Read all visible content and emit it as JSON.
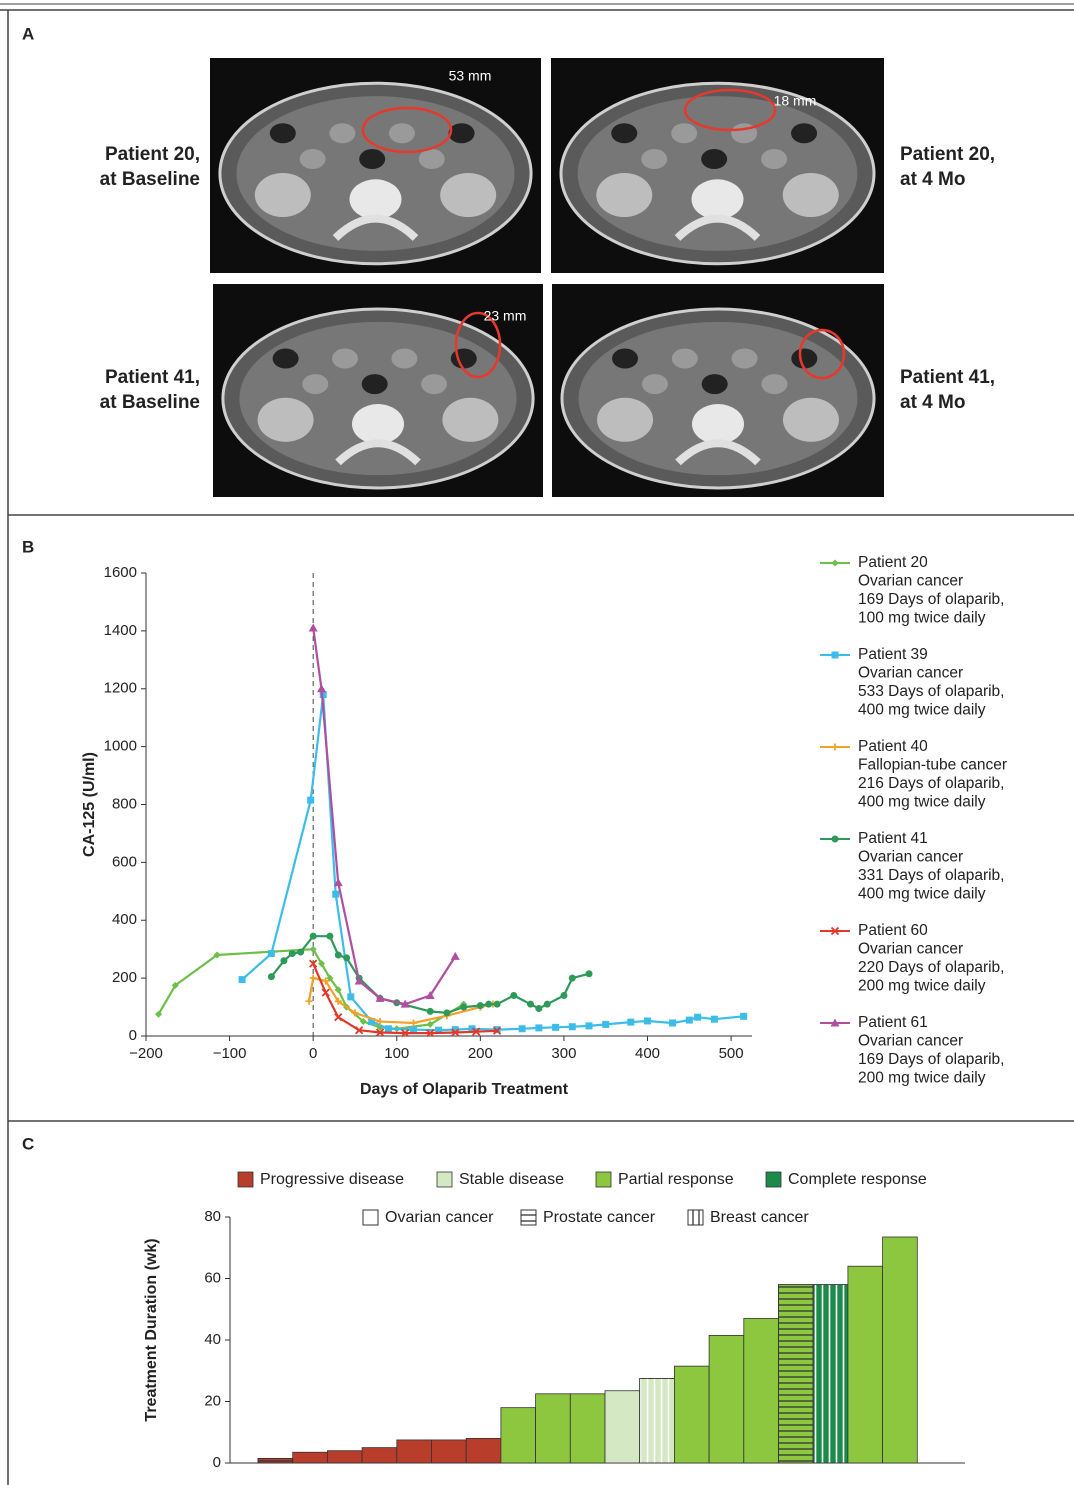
{
  "panel_a": {
    "letter": "A",
    "rows": [
      {
        "before": [
          "Patient 20,",
          "at Baseline"
        ],
        "after": [
          "Patient 20,",
          "at 4 Mo"
        ],
        "measure_before": "53 mm",
        "measure_after": "18 mm"
      },
      {
        "before": [
          "Patient 41,",
          "at Baseline"
        ],
        "after": [
          "Patient 41,",
          "at 4 Mo"
        ],
        "measure_before": "23 mm"
      }
    ]
  },
  "chart_data": [
    {
      "type": "line",
      "panel_label": "B",
      "ylabel": "CA-125 (U/ml)",
      "xlabel": "Days of Olaparib Treatment",
      "xlim": [
        -200,
        525
      ],
      "ylim": [
        0,
        1600
      ],
      "xticks": [
        {
          "value": -200,
          "label": "−200"
        },
        {
          "value": -100,
          "label": "−100"
        },
        0,
        100,
        200,
        300,
        400,
        500
      ],
      "yticks": [
        0,
        200,
        400,
        600,
        800,
        1000,
        1200,
        1400,
        1600
      ],
      "reference_x": 0,
      "series": [
        {
          "name": "Patient 20",
          "details": [
            "Ovarian cancer",
            "169 Days of olaparib,",
            "100 mg twice daily"
          ],
          "color": "#6cbf47",
          "marker": "diamond",
          "x": [
            -185,
            -165,
            -115,
            0,
            10,
            20,
            30,
            40,
            60,
            80,
            100,
            140,
            180
          ],
          "values": [
            75,
            175,
            280,
            300,
            250,
            200,
            160,
            100,
            50,
            30,
            25,
            40,
            110
          ]
        },
        {
          "name": "Patient 39",
          "details": [
            "Ovarian cancer",
            "533 Days of olaparib,",
            "400 mg twice daily"
          ],
          "color": "#3cbde9",
          "marker": "square",
          "x": [
            -85,
            -50,
            -3,
            12,
            27,
            45,
            70,
            90,
            120,
            150,
            170,
            190,
            220,
            250,
            270,
            290,
            310,
            330,
            350,
            380,
            400,
            430,
            450,
            460,
            480,
            515
          ],
          "values": [
            195,
            285,
            815,
            1180,
            490,
            135,
            50,
            25,
            22,
            20,
            22,
            25,
            22,
            25,
            28,
            30,
            32,
            35,
            40,
            48,
            52,
            45,
            55,
            65,
            58,
            68
          ]
        },
        {
          "name": "Patient 40",
          "details": [
            "Fallopian-tube cancer",
            "216 Days of olaparib,",
            "400 mg twice daily"
          ],
          "color": "#f2a22a",
          "marker": "plus",
          "x": [
            -5,
            0,
            15,
            30,
            50,
            80,
            120,
            160,
            200,
            215
          ],
          "values": [
            120,
            200,
            190,
            120,
            80,
            50,
            45,
            70,
            100,
            110
          ]
        },
        {
          "name": "Patient 41",
          "details": [
            "Ovarian cancer",
            "331 Days of olaparib,",
            "400 mg twice daily"
          ],
          "color": "#2e9a5a",
          "marker": "circle",
          "x": [
            -50,
            -35,
            -25,
            -15,
            0,
            20,
            30,
            40,
            55,
            80,
            100,
            140,
            160,
            180,
            200,
            210,
            220,
            240,
            260,
            270,
            280,
            300,
            310,
            330
          ],
          "values": [
            205,
            260,
            285,
            290,
            345,
            345,
            280,
            270,
            200,
            130,
            115,
            85,
            80,
            100,
            105,
            110,
            110,
            140,
            110,
            95,
            110,
            140,
            200,
            215
          ]
        },
        {
          "name": "Patient 60",
          "details": [
            "Ovarian cancer",
            "220 Days of olaparib,",
            "200 mg twice daily"
          ],
          "color": "#e0382a",
          "marker": "x",
          "x": [
            0,
            15,
            30,
            55,
            80,
            110,
            140,
            170,
            195,
            220
          ],
          "values": [
            250,
            150,
            65,
            20,
            12,
            10,
            10,
            12,
            15,
            18
          ]
        },
        {
          "name": "Patient 61",
          "details": [
            "Ovarian cancer",
            "169 Days of olaparib,",
            "200 mg twice daily"
          ],
          "color": "#b04ea0",
          "marker": "triangle",
          "x": [
            0,
            10,
            30,
            55,
            80,
            110,
            140,
            170
          ],
          "values": [
            1410,
            1200,
            530,
            190,
            130,
            110,
            140,
            275
          ]
        }
      ]
    },
    {
      "type": "bar",
      "panel_label": "C",
      "ylabel": "Treatment Duration (wk)",
      "ylim": [
        0,
        80
      ],
      "yticks": [
        0,
        20,
        40,
        60,
        80
      ],
      "response_legend": [
        {
          "name": "Progressive disease",
          "color": "#b83d2a"
        },
        {
          "name": "Stable disease",
          "color": "#d3e8c3"
        },
        {
          "name": "Partial response",
          "color": "#8dc63f"
        },
        {
          "name": "Complete response",
          "color": "#1c8a4a"
        }
      ],
      "cancer_legend": [
        {
          "name": "Ovarian cancer",
          "pattern": "none"
        },
        {
          "name": "Prostate cancer",
          "pattern": "hlines"
        },
        {
          "name": "Breast cancer",
          "pattern": "vlines"
        }
      ],
      "values": [
        1.5,
        3.5,
        4,
        5,
        7.5,
        7.5,
        8,
        18,
        22.5,
        22.5,
        23.5,
        27.5,
        31.5,
        41.5,
        47,
        58,
        58,
        64,
        73.5
      ],
      "response": [
        0,
        0,
        0,
        0,
        0,
        0,
        0,
        2,
        2,
        2,
        1,
        1,
        2,
        2,
        2,
        2,
        3,
        2,
        2
      ],
      "cancer": [
        1,
        0,
        0,
        0,
        0,
        0,
        0,
        0,
        0,
        0,
        0,
        2,
        0,
        0,
        0,
        1,
        2,
        0,
        0
      ]
    }
  ]
}
